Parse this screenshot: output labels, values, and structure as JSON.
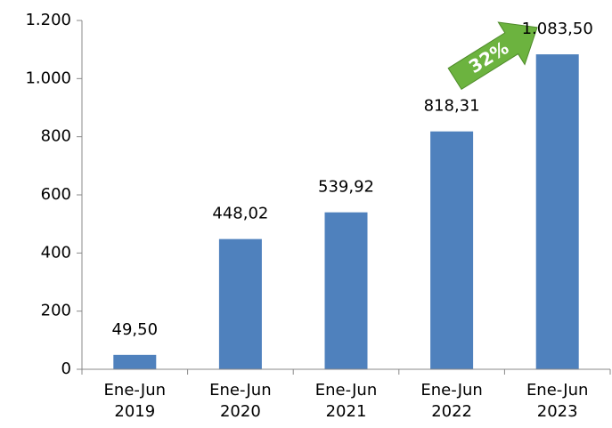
{
  "chart_data": {
    "type": "bar",
    "categories": [
      "Ene-Jun\n2019",
      "Ene-Jun\n2020",
      "Ene-Jun\n2021",
      "Ene-Jun\n2022",
      "Ene-Jun\n2023"
    ],
    "values": [
      49.5,
      448.02,
      539.92,
      818.31,
      1083.5
    ],
    "value_labels": [
      "49,50",
      "448,02",
      "539,92",
      "818,31",
      "1.083,50"
    ],
    "color": "#4f81bd",
    "ylim": [
      0,
      1200
    ],
    "yticks": [
      0,
      200,
      400,
      600,
      800,
      {
        "value": 1000,
        "label": "1.000"
      },
      {
        "value": 1200,
        "label": "1.200"
      }
    ],
    "grid": false,
    "annotation": "32%"
  }
}
